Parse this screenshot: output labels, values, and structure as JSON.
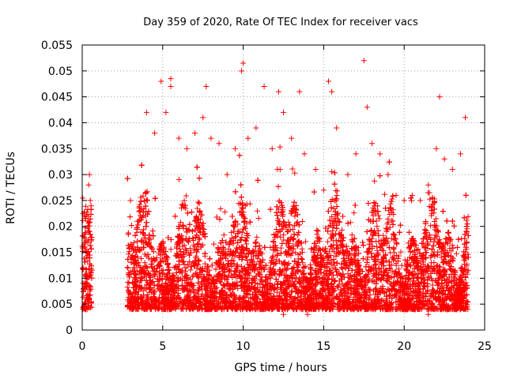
{
  "chart_data": {
    "type": "scatter",
    "title": "Day 359 of 2020, Rate Of TEC Index for receiver vacs",
    "xlabel": "GPS time / hours",
    "ylabel": "ROTI / TECUs",
    "xlim": [
      0,
      25
    ],
    "ylim": [
      0,
      0.055
    ],
    "x_ticks": [
      "0",
      "5",
      "10",
      "15",
      "20",
      "25"
    ],
    "y_ticks": [
      "0",
      "0.005",
      "0.01",
      "0.015",
      "0.02",
      "0.025",
      "0.03",
      "0.035",
      "0.04",
      "0.045",
      "0.05",
      "0.055"
    ],
    "x_tick_values": [
      0,
      5,
      10,
      15,
      20,
      25
    ],
    "y_tick_values": [
      0,
      0.005,
      0.01,
      0.015,
      0.02,
      0.025,
      0.03,
      0.035,
      0.04,
      0.045,
      0.05,
      0.055
    ],
    "grid": true,
    "marker": "+",
    "color": "#ff0000",
    "series": [
      {
        "name": "ROTI",
        "note": "dense cloud of points; data gap between ~0.6 h and ~2.8 h",
        "points": [
          [
            0.05,
            0.012
          ],
          [
            0.1,
            0.018
          ],
          [
            0.15,
            0.022
          ],
          [
            0.2,
            0.009
          ],
          [
            0.25,
            0.015
          ],
          [
            0.3,
            0.006
          ],
          [
            0.35,
            0.02
          ],
          [
            0.4,
            0.028
          ],
          [
            0.45,
            0.03
          ],
          [
            0.5,
            0.025
          ],
          [
            0.55,
            0.011
          ],
          [
            0.2,
            0.005
          ],
          [
            0.3,
            0.004
          ],
          [
            0.45,
            0.019
          ],
          [
            0.1,
            0.008
          ],
          [
            3.0,
            0.025
          ],
          [
            3.5,
            0.021
          ],
          [
            4.0,
            0.042
          ],
          [
            4.5,
            0.038
          ],
          [
            4.9,
            0.048
          ],
          [
            5.2,
            0.042
          ],
          [
            5.5,
            0.0485
          ],
          [
            5.5,
            0.047
          ],
          [
            6.0,
            0.037
          ],
          [
            6.5,
            0.035
          ],
          [
            7.0,
            0.038
          ],
          [
            7.5,
            0.041
          ],
          [
            7.7,
            0.047
          ],
          [
            8.0,
            0.037
          ],
          [
            8.5,
            0.036
          ],
          [
            9.0,
            0.03
          ],
          [
            9.5,
            0.035
          ],
          [
            9.9,
            0.05
          ],
          [
            10.0,
            0.0515
          ],
          [
            10.3,
            0.037
          ],
          [
            10.8,
            0.039
          ],
          [
            11.3,
            0.047
          ],
          [
            11.8,
            0.035
          ],
          [
            12.2,
            0.046
          ],
          [
            12.5,
            0.042
          ],
          [
            13.0,
            0.037
          ],
          [
            13.5,
            0.046
          ],
          [
            13.8,
            0.034
          ],
          [
            14.5,
            0.031
          ],
          [
            15.0,
            0.027
          ],
          [
            15.3,
            0.048
          ],
          [
            15.5,
            0.046
          ],
          [
            15.8,
            0.039
          ],
          [
            16.5,
            0.03
          ],
          [
            17.0,
            0.034
          ],
          [
            17.5,
            0.052
          ],
          [
            17.7,
            0.043
          ],
          [
            18.0,
            0.036
          ],
          [
            18.5,
            0.034
          ],
          [
            19.0,
            0.03
          ],
          [
            19.5,
            0.026
          ],
          [
            20.0,
            0.025
          ],
          [
            20.5,
            0.026
          ],
          [
            21.0,
            0.025
          ],
          [
            21.5,
            0.028
          ],
          [
            22.0,
            0.035
          ],
          [
            22.2,
            0.045
          ],
          [
            22.5,
            0.033
          ],
          [
            23.0,
            0.031
          ],
          [
            23.5,
            0.034
          ],
          [
            23.8,
            0.041
          ],
          [
            3.2,
            0.006
          ],
          [
            5.0,
            0.004
          ],
          [
            8.0,
            0.004
          ],
          [
            11.0,
            0.004
          ],
          [
            12.5,
            0.003
          ],
          [
            14.0,
            0.003
          ],
          [
            16.0,
            0.004
          ],
          [
            19.0,
            0.004
          ],
          [
            21.5,
            0.003
          ],
          [
            23.5,
            0.004
          ]
        ]
      }
    ]
  }
}
